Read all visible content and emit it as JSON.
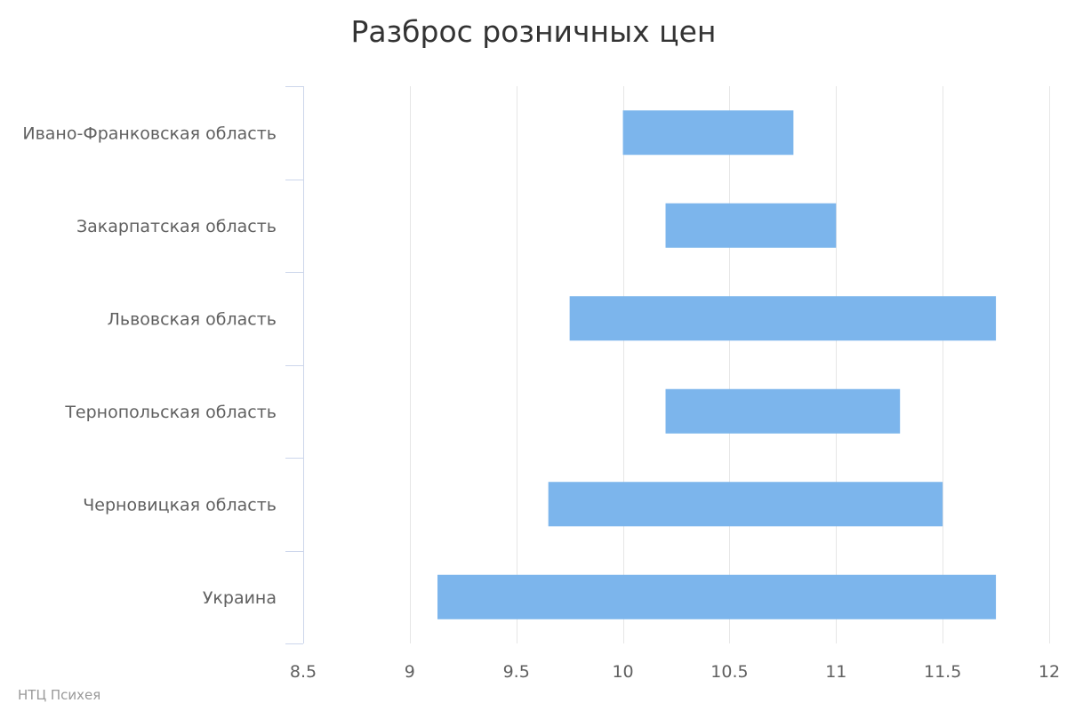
{
  "chart_data": {
    "type": "bar",
    "orientation": "horizontal",
    "title": "Разброс розничных цен",
    "categories": [
      "Ивано-Франковская область",
      "Закарпатская область",
      "Львовская область",
      "Тернопольская область",
      "Черновицкая область",
      "Украина"
    ],
    "ranges": [
      [
        10.0,
        10.8
      ],
      [
        10.2,
        11.0
      ],
      [
        9.75,
        11.75
      ],
      [
        10.2,
        11.3
      ],
      [
        9.65,
        11.5
      ],
      [
        9.13,
        11.75
      ]
    ],
    "xlim": [
      8.5,
      12
    ],
    "xticks": [
      "8.5",
      "9",
      "9.5",
      "10",
      "10.5",
      "11",
      "11.5",
      "12"
    ],
    "xtick_values": [
      8.5,
      9,
      9.5,
      10,
      10.5,
      11,
      11.5,
      12
    ],
    "grid": true,
    "bar_color": "#7cb5ec",
    "grid_color": "#e6e6e6",
    "axis_color": "#ccd6eb"
  },
  "credits": "НТЦ Психея"
}
